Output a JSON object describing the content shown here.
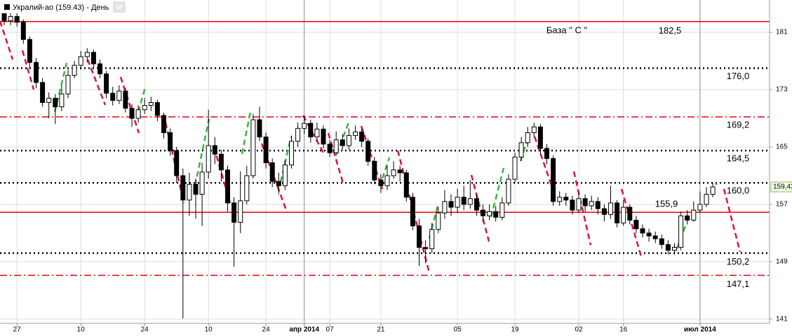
{
  "chart_data": {
    "type": "candlestick",
    "title": "Укралий-ао (159.43) - День",
    "categories": [
      null,
      null,
      "27",
      null,
      null,
      null,
      null,
      null,
      null,
      null,
      null,
      null,
      "10",
      null,
      null,
      null,
      null,
      null,
      null,
      null,
      null,
      null,
      "24",
      null,
      null,
      null,
      null,
      null,
      null,
      null,
      null,
      null,
      "10",
      null,
      null,
      null,
      null,
      null,
      null,
      null,
      null,
      "24",
      null,
      null,
      null,
      null,
      null,
      "апр 2014",
      null,
      null,
      null,
      "07",
      null,
      null,
      null,
      null,
      null,
      null,
      null,
      "21",
      null,
      null,
      null,
      null,
      null,
      null,
      null,
      null,
      null,
      null,
      null,
      "05",
      null,
      null,
      null,
      null,
      null,
      null,
      null,
      null,
      "19",
      null,
      null,
      null,
      null,
      null,
      null,
      null,
      null,
      null,
      "02",
      null,
      null,
      null,
      null,
      null,
      null,
      "16",
      null,
      null,
      null,
      null,
      null,
      null,
      null,
      null,
      null,
      null,
      null,
      "июл 2014",
      null,
      null
    ],
    "open": [
      184.0,
      182.6,
      183.2,
      182.4,
      180.0,
      176.8,
      174.0,
      171.2,
      171.8,
      170.6,
      172.4,
      175.0,
      176.4,
      177.6,
      178.2,
      176.6,
      175.2,
      172.5,
      171.5,
      172.8,
      170.4,
      169.0,
      170.2,
      170.8,
      171.2,
      169.4,
      167.0,
      164.5,
      161.0,
      157.6,
      159.8,
      158.4,
      161.5,
      165.2,
      164.0,
      161.8,
      157.2,
      154.5,
      157.5,
      161.0,
      168.8,
      166.4,
      162.8,
      160.2,
      159.6,
      162.5,
      165.8,
      167.6,
      168.3,
      166.4,
      167.5,
      165.4,
      164.2,
      166.0,
      165.2,
      166.6,
      167.1,
      165.8,
      163.0,
      160.4,
      159.6,
      161.0,
      161.8,
      161.4,
      158.0,
      154.0,
      151.0,
      150.8,
      153.5,
      155.8,
      157.4,
      156.6,
      158.0,
      157.0,
      157.8,
      156.2,
      155.4,
      156.0,
      155.2,
      157.2,
      160.5,
      163.6,
      165.6,
      167.0,
      167.8,
      164.8,
      163.4,
      157.4,
      158.0,
      157.6,
      156.2,
      157.8,
      156.8,
      157.4,
      156.4,
      155.6,
      157.2,
      154.4,
      156.6,
      154.8,
      153.6,
      153.0,
      152.6,
      152.2,
      151.4,
      150.6,
      151.0,
      155.4,
      154.8,
      156.2,
      157.0,
      158.4
    ],
    "high": [
      185.0,
      184.0,
      183.8,
      182.8,
      180.4,
      177.4,
      174.6,
      172.6,
      172.4,
      173.6,
      175.8,
      177.0,
      178.4,
      178.8,
      178.6,
      177.2,
      175.6,
      173.4,
      173.6,
      173.2,
      171.0,
      170.8,
      171.8,
      172.0,
      171.6,
      169.8,
      167.6,
      165.0,
      162.0,
      161.4,
      160.6,
      162.8,
      170.2,
      166.4,
      164.6,
      162.4,
      158.0,
      161.6,
      162.4,
      169.6,
      170.6,
      167.0,
      163.4,
      161.4,
      163.2,
      166.6,
      168.4,
      169.4,
      168.8,
      168.4,
      168.0,
      166.0,
      167.2,
      166.8,
      167.6,
      168.0,
      167.6,
      166.2,
      163.6,
      161.2,
      162.4,
      163.0,
      162.4,
      161.8,
      158.6,
      155.0,
      152.0,
      154.4,
      156.6,
      159.0,
      158.4,
      159.2,
      159.6,
      160.4,
      158.4,
      157.0,
      157.0,
      156.8,
      158.0,
      161.2,
      164.2,
      166.4,
      167.8,
      168.4,
      168.2,
      165.4,
      163.8,
      158.8,
      158.6,
      158.2,
      158.6,
      158.4,
      158.2,
      158.0,
      157.0,
      159.6,
      157.6,
      157.6,
      157.0,
      155.4,
      154.2,
      153.6,
      153.2,
      152.8,
      152.0,
      151.6,
      156.0,
      156.2,
      157.4,
      158.8,
      159.4,
      160.0
    ],
    "low": [
      182.0,
      182.0,
      181.8,
      179.4,
      176.0,
      173.2,
      170.6,
      169.0,
      168.2,
      170.0,
      171.8,
      174.6,
      175.8,
      176.8,
      176.0,
      174.6,
      171.8,
      170.8,
      171.0,
      169.8,
      167.8,
      168.4,
      169.6,
      170.0,
      168.6,
      166.2,
      163.8,
      160.0,
      141.1,
      155.4,
      155.0,
      154.0,
      160.6,
      162.6,
      160.2,
      156.0,
      148.3,
      153.0,
      157.0,
      160.6,
      165.8,
      162.0,
      159.4,
      158.4,
      159.0,
      162.0,
      165.0,
      166.8,
      165.6,
      165.8,
      164.8,
      163.6,
      163.8,
      164.6,
      164.6,
      166.0,
      165.0,
      162.4,
      159.8,
      158.6,
      159.0,
      160.6,
      160.2,
      157.4,
      153.4,
      148.4,
      148.8,
      150.2,
      153.0,
      155.0,
      155.4,
      155.8,
      156.2,
      156.4,
      155.4,
      154.6,
      154.8,
      154.6,
      154.8,
      156.8,
      160.0,
      163.0,
      165.0,
      166.4,
      164.0,
      162.6,
      156.8,
      156.8,
      156.8,
      155.6,
      155.8,
      156.0,
      156.2,
      155.6,
      154.6,
      155.0,
      153.8,
      154.0,
      154.2,
      153.0,
      152.4,
      151.8,
      151.6,
      150.8,
      150.0,
      150.0,
      150.6,
      154.2,
      154.6,
      155.8,
      156.6,
      158.0
    ],
    "close": [
      182.6,
      183.2,
      182.4,
      180.0,
      176.8,
      174.0,
      171.2,
      171.8,
      170.6,
      172.4,
      175.0,
      176.4,
      177.6,
      178.2,
      176.6,
      175.2,
      172.5,
      171.5,
      172.8,
      170.4,
      169.0,
      170.2,
      170.8,
      171.2,
      169.4,
      167.0,
      164.5,
      161.0,
      157.6,
      159.8,
      158.4,
      161.5,
      165.2,
      164.0,
      161.8,
      157.2,
      154.5,
      157.5,
      161.0,
      168.8,
      166.4,
      162.8,
      160.2,
      159.6,
      162.5,
      165.8,
      167.6,
      168.3,
      166.4,
      167.5,
      165.4,
      164.2,
      166.0,
      165.2,
      166.6,
      167.1,
      165.8,
      163.0,
      160.4,
      159.6,
      161.0,
      161.8,
      161.4,
      158.0,
      154.0,
      151.0,
      150.8,
      153.5,
      155.8,
      157.4,
      156.6,
      158.0,
      157.0,
      157.8,
      156.2,
      155.4,
      156.0,
      155.2,
      157.2,
      160.5,
      163.6,
      165.6,
      167.0,
      167.8,
      164.8,
      163.4,
      157.4,
      158.0,
      157.6,
      156.2,
      157.8,
      156.8,
      157.4,
      156.4,
      155.6,
      157.2,
      154.4,
      156.6,
      154.8,
      153.6,
      153.0,
      152.6,
      152.2,
      151.4,
      150.6,
      151.0,
      155.4,
      154.8,
      156.2,
      157.0,
      158.4,
      159.43
    ],
    "ylim": [
      140.4,
      185.5
    ],
    "yticks": [
      141,
      149,
      157,
      165,
      173,
      181
    ],
    "grid": true,
    "up_color": "#ffffff",
    "down_color": "#000000",
    "levels": [
      {
        "value": 182.5,
        "label": "182,5",
        "color": "#e8000b",
        "style": "solid"
      },
      {
        "value": 176,
        "label": "176,0",
        "color": "#000000",
        "style": "dotted"
      },
      {
        "value": 169.2,
        "label": "169,2",
        "color": "#e8000b",
        "style": "dashdot"
      },
      {
        "value": 164.5,
        "label": "164,5",
        "color": "#000000",
        "style": "dotted"
      },
      {
        "value": 160,
        "label": "160,0",
        "color": "#000000",
        "style": "dotted"
      },
      {
        "value": 155.9,
        "label": "155,9",
        "color": "#e8000b",
        "style": "solid"
      },
      {
        "value": 150.2,
        "label": "150,2",
        "color": "#000000",
        "style": "dotted"
      },
      {
        "value": 147.1,
        "label": "147,1",
        "color": "#e8000b",
        "style": "dashdot"
      }
    ],
    "annotation": "База \" С \"",
    "last_price": {
      "value": 159.43,
      "label": "159,43"
    }
  }
}
